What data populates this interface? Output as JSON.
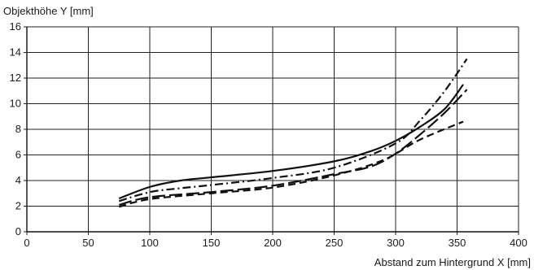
{
  "chart_data": {
    "type": "line",
    "title": "",
    "xlabel": "Abstand zum Hintergrund X [mm]",
    "ylabel": "Objekthöhe Y [mm]",
    "xlim": [
      0,
      400
    ],
    "ylim": [
      0,
      16
    ],
    "xticks": [
      0,
      50,
      100,
      150,
      200,
      250,
      300,
      350,
      400
    ],
    "yticks": [
      0,
      2,
      4,
      6,
      8,
      10,
      12,
      14,
      16
    ],
    "grid": true,
    "legend": "none",
    "series": [
      {
        "style": "solid",
        "points": [
          [
            75,
            2.6
          ],
          [
            100,
            3.5
          ],
          [
            125,
            4.0
          ],
          [
            150,
            4.25
          ],
          [
            200,
            4.75
          ],
          [
            250,
            5.5
          ],
          [
            280,
            6.3
          ],
          [
            300,
            7.1
          ],
          [
            320,
            8.2
          ],
          [
            340,
            9.6
          ],
          [
            355,
            11.5
          ]
        ]
      },
      {
        "style": "dash-dot",
        "points": [
          [
            75,
            2.4
          ],
          [
            100,
            3.1
          ],
          [
            125,
            3.4
          ],
          [
            150,
            3.65
          ],
          [
            200,
            4.2
          ],
          [
            250,
            5.0
          ],
          [
            300,
            6.9
          ],
          [
            320,
            8.7
          ],
          [
            340,
            11.0
          ],
          [
            358,
            13.5
          ]
        ]
      },
      {
        "style": "long-dash",
        "points": [
          [
            75,
            2.1
          ],
          [
            100,
            2.7
          ],
          [
            150,
            3.1
          ],
          [
            200,
            3.6
          ],
          [
            250,
            4.5
          ],
          [
            280,
            5.1
          ],
          [
            300,
            6.1
          ],
          [
            320,
            7.6
          ],
          [
            340,
            9.3
          ],
          [
            358,
            11.1
          ]
        ]
      },
      {
        "style": "dash",
        "points": [
          [
            75,
            1.95
          ],
          [
            100,
            2.55
          ],
          [
            150,
            3.0
          ],
          [
            200,
            3.45
          ],
          [
            250,
            4.4
          ],
          [
            290,
            5.6
          ],
          [
            320,
            7.2
          ],
          [
            355,
            8.6
          ]
        ]
      }
    ]
  }
}
